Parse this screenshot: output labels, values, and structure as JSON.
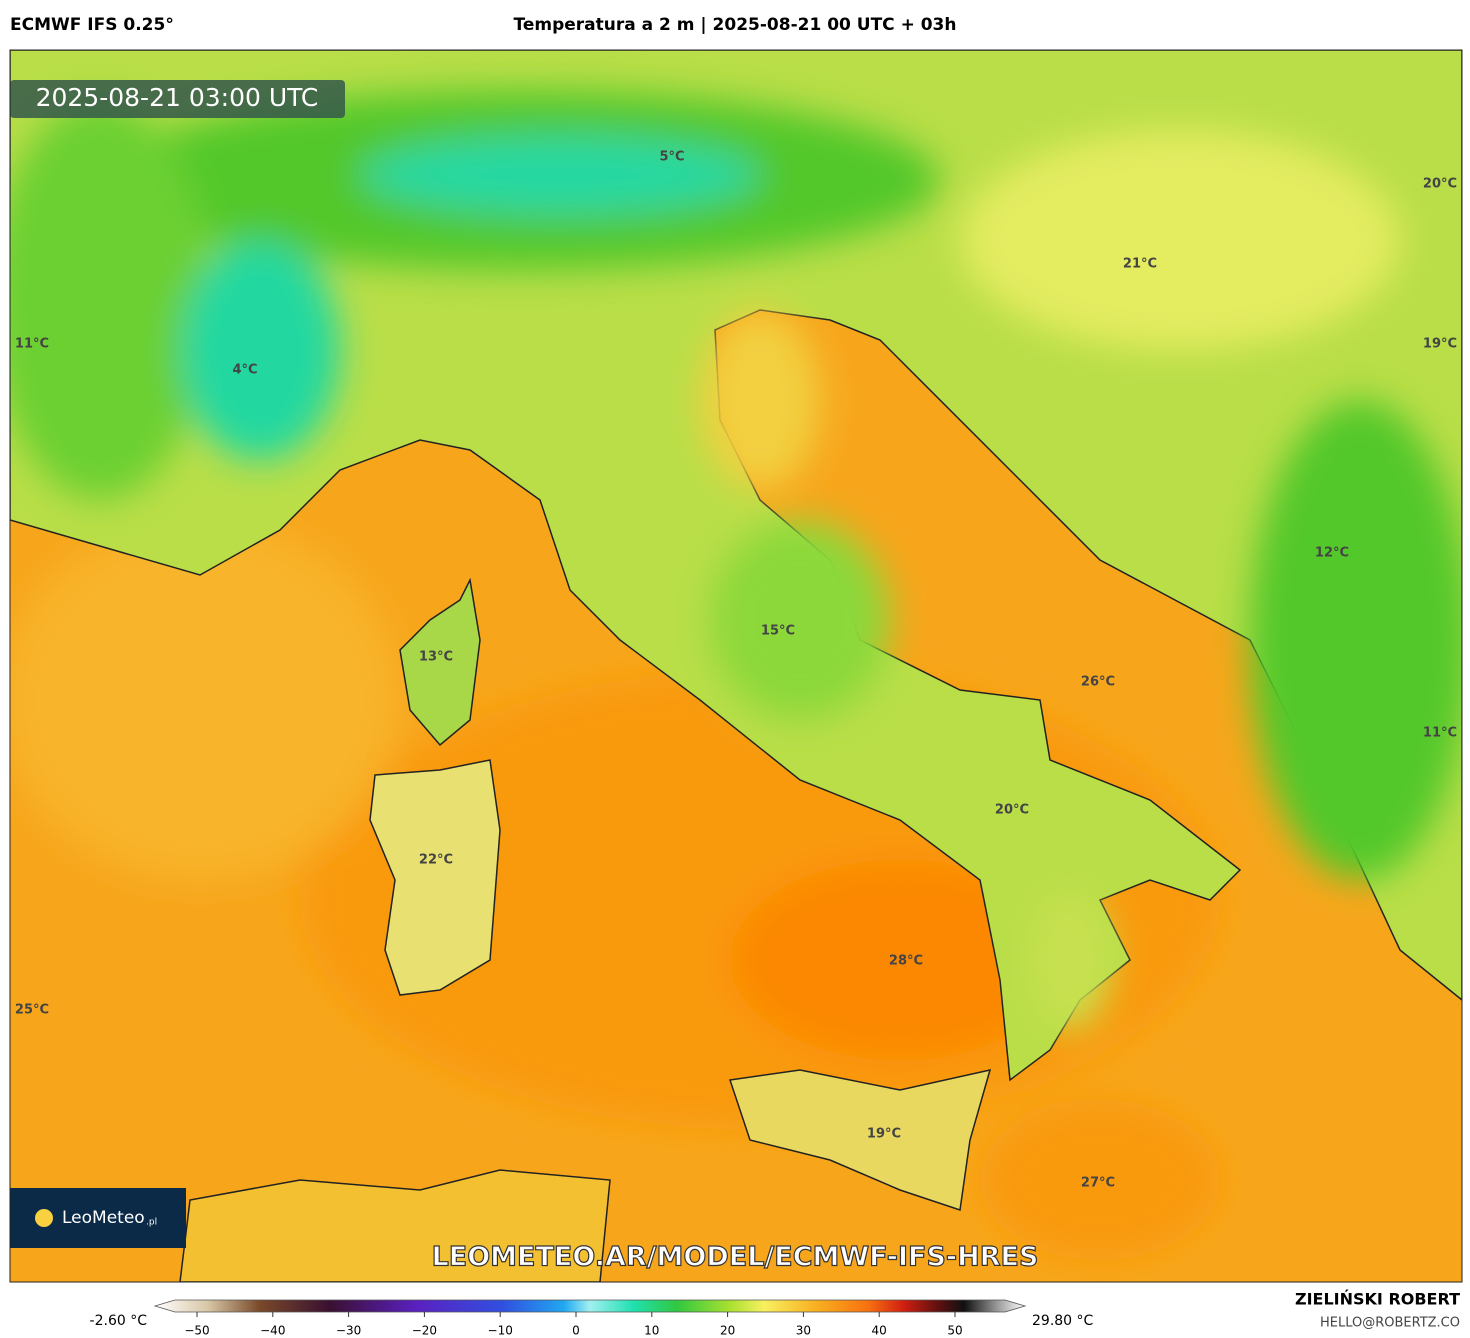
{
  "header": {
    "model": "ECMWF IFS 0.25°",
    "title": "Temperatura a 2 m | 2025-08-21 00 UTC + 03h"
  },
  "map": {
    "timestamp": "2025-08-21 03:00 UTC",
    "logo": "LeoMeteo",
    "logo_suffix": ".pl",
    "url": "LEOMETEO.AR/MODEL/ECMWF-IFS-HRES",
    "labels": [
      "5°C",
      "20°C",
      "21°C",
      "11°C",
      "19°C",
      "4°C",
      "12°C",
      "13°C",
      "15°C",
      "26°C",
      "11°C",
      "20°C",
      "22°C",
      "28°C",
      "25°C",
      "19°C",
      "27°C"
    ]
  },
  "legend": {
    "min_label": "-2.60 °C",
    "max_label": "29.80 °C",
    "ticks": [
      {
        "value": -50,
        "label": "−50"
      },
      {
        "value": -40,
        "label": "−40"
      },
      {
        "value": -30,
        "label": "−30"
      },
      {
        "value": -20,
        "label": "−20"
      },
      {
        "value": -10,
        "label": "−10"
      },
      0,
      10,
      20,
      30,
      40,
      50
    ]
  },
  "credit": {
    "author": "ZIELIŃSKI ROBERT",
    "email": "HELLO@ROBERTZ.CO"
  }
}
